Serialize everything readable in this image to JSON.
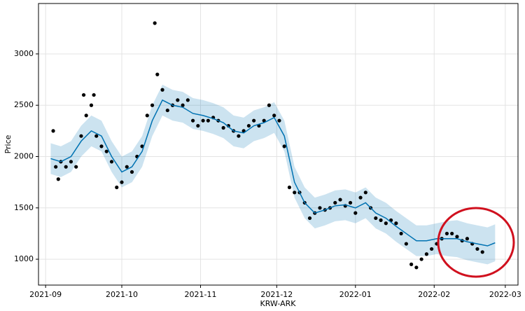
{
  "chart_data": {
    "type": "forecast",
    "x_label": "KRW-ARK",
    "y_label": "Price",
    "xlim": [
      -2.8,
      186
    ],
    "ylim": [
      748,
      3491
    ],
    "grid": true,
    "xticks": [
      {
        "value": 0,
        "label": "2021-09"
      },
      {
        "value": 30,
        "label": "2021-10"
      },
      {
        "value": 61,
        "label": "2021-11"
      },
      {
        "value": 91,
        "label": "2021-12"
      },
      {
        "value": 122,
        "label": "2022-01"
      },
      {
        "value": 153,
        "label": "2022-02"
      },
      {
        "value": 181,
        "label": "2022-03"
      }
    ],
    "yticks": [
      1000,
      1500,
      2000,
      2500,
      3000
    ],
    "series": [
      {
        "type": "scatter",
        "color": "#000000",
        "x": [
          3,
          4,
          5,
          6,
          8,
          10,
          12,
          14,
          15,
          16,
          18,
          19,
          20,
          22,
          24,
          26,
          28,
          30,
          32,
          34,
          36,
          38,
          40,
          42,
          43,
          44,
          46,
          48,
          50,
          52,
          54,
          56,
          58,
          60,
          62,
          64,
          66,
          68,
          70,
          72,
          74,
          76,
          78,
          80,
          82,
          84,
          86,
          88,
          90,
          92,
          94,
          96,
          98,
          100,
          102,
          104,
          106,
          108,
          110,
          112,
          114,
          116,
          118,
          120,
          122,
          124,
          126,
          128,
          130,
          132,
          134,
          136,
          138,
          140,
          142,
          144,
          146,
          148,
          150,
          152,
          154,
          156,
          158,
          160,
          162,
          164,
          166,
          168,
          170,
          172
        ],
        "values": [
          2250,
          1900,
          1780,
          1950,
          1900,
          1950,
          1900,
          2200,
          2600,
          2400,
          2500,
          2600,
          2200,
          2100,
          2050,
          1950,
          1700,
          1750,
          1900,
          1850,
          2000,
          2100,
          2400,
          2500,
          3300,
          2800,
          2650,
          2450,
          2500,
          2550,
          2500,
          2550,
          2350,
          2300,
          2350,
          2350,
          2380,
          2350,
          2280,
          2300,
          2250,
          2200,
          2250,
          2300,
          2350,
          2300,
          2350,
          2500,
          2400,
          2350,
          2100,
          1700,
          1650,
          1650,
          1550,
          1400,
          1450,
          1500,
          1480,
          1500,
          1550,
          1580,
          1520,
          1550,
          1450,
          1600,
          1650,
          1500,
          1400,
          1380,
          1350,
          1380,
          1350,
          1250,
          1150,
          950,
          920,
          1000,
          1050,
          1100,
          1150,
          1200,
          1250,
          1250,
          1220,
          1180,
          1200,
          1150,
          1100,
          1070
        ]
      },
      {
        "type": "line",
        "color": "#0072B2",
        "x": [
          2,
          6,
          10,
          14,
          18,
          22,
          26,
          30,
          34,
          38,
          42,
          46,
          50,
          54,
          58,
          62,
          66,
          70,
          74,
          78,
          82,
          86,
          90,
          94,
          98,
          102,
          106,
          110,
          114,
          118,
          122,
          126,
          130,
          134,
          138,
          142,
          146,
          150,
          154,
          158,
          162,
          166,
          170,
          174,
          177
        ],
        "values": [
          1980,
          1950,
          2000,
          2150,
          2250,
          2200,
          2000,
          1850,
          1900,
          2050,
          2350,
          2550,
          2500,
          2480,
          2420,
          2400,
          2370,
          2330,
          2250,
          2230,
          2300,
          2330,
          2380,
          2200,
          1750,
          1550,
          1450,
          1480,
          1520,
          1530,
          1500,
          1550,
          1450,
          1400,
          1320,
          1250,
          1180,
          1180,
          1200,
          1200,
          1200,
          1170,
          1150,
          1130,
          1160
        ],
        "lower": [
          1830,
          1800,
          1850,
          2000,
          2100,
          2050,
          1850,
          1700,
          1750,
          1900,
          2200,
          2400,
          2350,
          2330,
          2270,
          2250,
          2220,
          2180,
          2100,
          2080,
          2150,
          2180,
          2230,
          2050,
          1600,
          1400,
          1300,
          1330,
          1370,
          1380,
          1350,
          1400,
          1300,
          1250,
          1170,
          1100,
          1030,
          1030,
          1050,
          1030,
          1020,
          990,
          970,
          950,
          980
        ],
        "upper": [
          2130,
          2100,
          2150,
          2300,
          2400,
          2350,
          2150,
          2000,
          2050,
          2200,
          2500,
          2700,
          2650,
          2630,
          2570,
          2550,
          2520,
          2480,
          2400,
          2380,
          2450,
          2480,
          2530,
          2350,
          1900,
          1700,
          1600,
          1630,
          1670,
          1680,
          1650,
          1700,
          1600,
          1550,
          1470,
          1400,
          1330,
          1330,
          1350,
          1370,
          1380,
          1350,
          1330,
          1310,
          1340
        ]
      }
    ]
  }
}
